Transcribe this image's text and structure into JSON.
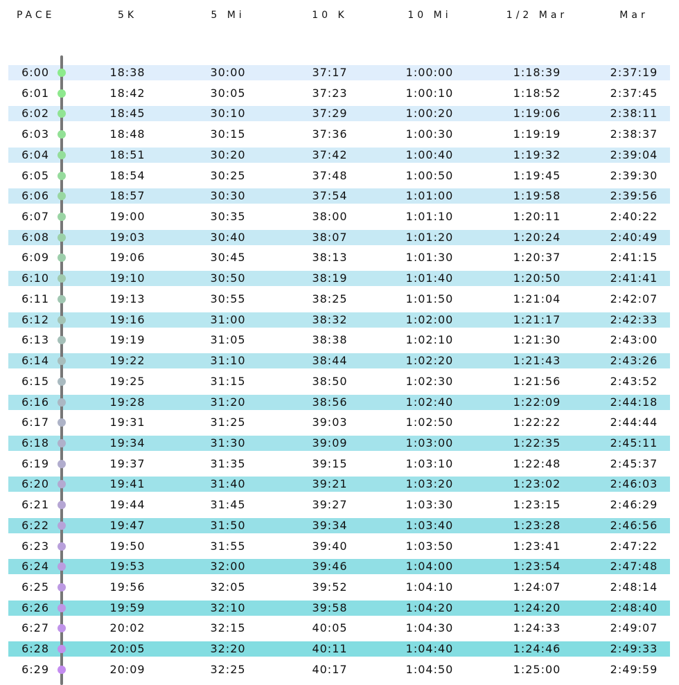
{
  "table": {
    "headers": [
      "PACE",
      "5K",
      "5 Mi",
      "10 K",
      "10 Mi",
      "1/2 Mar",
      "Mar"
    ],
    "rows": [
      [
        "6:00",
        "18:38",
        "30:00",
        "37:17",
        "1:00:00",
        "1:18:39",
        "2:37:19"
      ],
      [
        "6:01",
        "18:42",
        "30:05",
        "37:23",
        "1:00:10",
        "1:18:52",
        "2:37:45"
      ],
      [
        "6:02",
        "18:45",
        "30:10",
        "37:29",
        "1:00:20",
        "1:19:06",
        "2:38:11"
      ],
      [
        "6:03",
        "18:48",
        "30:15",
        "37:36",
        "1:00:30",
        "1:19:19",
        "2:38:37"
      ],
      [
        "6:04",
        "18:51",
        "30:20",
        "37:42",
        "1:00:40",
        "1:19:32",
        "2:39:04"
      ],
      [
        "6:05",
        "18:54",
        "30:25",
        "37:48",
        "1:00:50",
        "1:19:45",
        "2:39:30"
      ],
      [
        "6:06",
        "18:57",
        "30:30",
        "37:54",
        "1:01:00",
        "1:19:58",
        "2:39:56"
      ],
      [
        "6:07",
        "19:00",
        "30:35",
        "38:00",
        "1:01:10",
        "1:20:11",
        "2:40:22"
      ],
      [
        "6:08",
        "19:03",
        "30:40",
        "38:07",
        "1:01:20",
        "1:20:24",
        "2:40:49"
      ],
      [
        "6:09",
        "19:06",
        "30:45",
        "38:13",
        "1:01:30",
        "1:20:37",
        "2:41:15"
      ],
      [
        "6:10",
        "19:10",
        "30:50",
        "38:19",
        "1:01:40",
        "1:20:50",
        "2:41:41"
      ],
      [
        "6:11",
        "19:13",
        "30:55",
        "38:25",
        "1:01:50",
        "1:21:04",
        "2:42:07"
      ],
      [
        "6:12",
        "19:16",
        "31:00",
        "38:32",
        "1:02:00",
        "1:21:17",
        "2:42:33"
      ],
      [
        "6:13",
        "19:19",
        "31:05",
        "38:38",
        "1:02:10",
        "1:21:30",
        "2:43:00"
      ],
      [
        "6:14",
        "19:22",
        "31:10",
        "38:44",
        "1:02:20",
        "1:21:43",
        "2:43:26"
      ],
      [
        "6:15",
        "19:25",
        "31:15",
        "38:50",
        "1:02:30",
        "1:21:56",
        "2:43:52"
      ],
      [
        "6:16",
        "19:28",
        "31:20",
        "38:56",
        "1:02:40",
        "1:22:09",
        "2:44:18"
      ],
      [
        "6:17",
        "19:31",
        "31:25",
        "39:03",
        "1:02:50",
        "1:22:22",
        "2:44:44"
      ],
      [
        "6:18",
        "19:34",
        "31:30",
        "39:09",
        "1:03:00",
        "1:22:35",
        "2:45:11"
      ],
      [
        "6:19",
        "19:37",
        "31:35",
        "39:15",
        "1:03:10",
        "1:22:48",
        "2:45:37"
      ],
      [
        "6:20",
        "19:41",
        "31:40",
        "39:21",
        "1:03:20",
        "1:23:02",
        "2:46:03"
      ],
      [
        "6:21",
        "19:44",
        "31:45",
        "39:27",
        "1:03:30",
        "1:23:15",
        "2:46:29"
      ],
      [
        "6:22",
        "19:47",
        "31:50",
        "39:34",
        "1:03:40",
        "1:23:28",
        "2:46:56"
      ],
      [
        "6:23",
        "19:50",
        "31:55",
        "39:40",
        "1:03:50",
        "1:23:41",
        "2:47:22"
      ],
      [
        "6:24",
        "19:53",
        "32:00",
        "39:46",
        "1:04:00",
        "1:23:54",
        "2:47:48"
      ],
      [
        "6:25",
        "19:56",
        "32:05",
        "39:52",
        "1:04:10",
        "1:24:07",
        "2:48:14"
      ],
      [
        "6:26",
        "19:59",
        "32:10",
        "39:58",
        "1:04:20",
        "1:24:20",
        "2:48:40"
      ],
      [
        "6:27",
        "20:02",
        "32:15",
        "40:05",
        "1:04:30",
        "1:24:33",
        "2:49:07"
      ],
      [
        "6:28",
        "20:05",
        "32:20",
        "40:11",
        "1:04:40",
        "1:24:46",
        "2:49:33"
      ],
      [
        "6:29",
        "20:09",
        "32:25",
        "40:17",
        "1:04:50",
        "1:25:00",
        "2:49:59"
      ]
    ]
  }
}
